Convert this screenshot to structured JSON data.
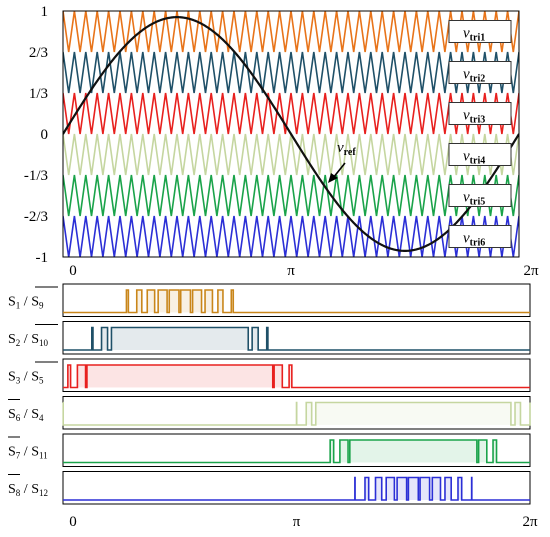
{
  "chart_data": [
    {
      "type": "line",
      "ylim": [
        -1,
        1
      ],
      "xlim": [
        0,
        6.2832
      ],
      "y_ticks": [
        "1",
        "2/3",
        "1/3",
        "0",
        "-1/3",
        "-2/3",
        "-1"
      ],
      "x_ticks": [
        "0",
        "π",
        "2π"
      ],
      "carrier_periods": 40,
      "series": [
        {
          "name": "v_tri1",
          "type": "triangle",
          "range": [
            0.6667,
            1.0
          ],
          "color": "#e8741a"
        },
        {
          "name": "v_tri2",
          "type": "triangle",
          "range": [
            0.3333,
            0.6667
          ],
          "color": "#1f5068"
        },
        {
          "name": "v_tri3",
          "type": "triangle",
          "range": [
            0.0,
            0.3333
          ],
          "color": "#e8201e"
        },
        {
          "name": "v_tri4",
          "type": "triangle",
          "range": [
            -0.3333,
            0.0
          ],
          "color": "#c5d6a0"
        },
        {
          "name": "v_tri5",
          "type": "triangle",
          "range": [
            -0.6667,
            -0.3333
          ],
          "color": "#1aa34a"
        },
        {
          "name": "v_tri6",
          "type": "triangle",
          "range": [
            -1.0,
            -0.6667
          ],
          "color": "#2b2fd6"
        },
        {
          "name": "v_ref",
          "type": "sine",
          "amplitude": 0.95,
          "color": "#111111"
        }
      ],
      "legend": {
        "labels": [
          {
            "main": "v",
            "sub": "tri1"
          },
          {
            "main": "v",
            "sub": "tri2"
          },
          {
            "main": "v",
            "sub": "tri3"
          },
          {
            "main": "v",
            "sub": "tri4"
          },
          {
            "main": "v",
            "sub": "tri5"
          },
          {
            "main": "v",
            "sub": "tri6"
          }
        ]
      },
      "annotation": {
        "main": "v",
        "sub": "ref"
      }
    },
    {
      "type": "line",
      "xlim": [
        0,
        6.2832
      ],
      "x_ticks": [
        "0",
        "π",
        "2π"
      ],
      "series": [
        {
          "label_a": "S",
          "sub_a": "1",
          "label_b": "S",
          "sub_b": "9",
          "bar_b": true,
          "bar_a": false,
          "color": "#c9861a",
          "level": 0.6667
        },
        {
          "label_a": "S",
          "sub_a": "2",
          "label_b": "S",
          "sub_b": "10",
          "bar_b": true,
          "bar_a": false,
          "color": "#1f5068",
          "level": 0.3333
        },
        {
          "label_a": "S",
          "sub_a": "3",
          "label_b": "S",
          "sub_b": "5",
          "bar_b": true,
          "bar_a": false,
          "color": "#e8201e",
          "level": 0.0
        },
        {
          "label_a": "S",
          "sub_a": "6",
          "label_b": "S",
          "sub_b": "4",
          "bar_b": false,
          "bar_a": true,
          "color": "#c5d6a0",
          "level": -0.3333
        },
        {
          "label_a": "S",
          "sub_a": "7",
          "label_b": "S",
          "sub_b": "11",
          "bar_b": false,
          "bar_a": true,
          "color": "#1aa34a",
          "level": -0.6667
        },
        {
          "label_a": "S",
          "sub_a": "8",
          "label_b": "S",
          "sub_b": "12",
          "bar_b": false,
          "bar_a": true,
          "color": "#2b2fd6",
          "level": -1.0
        }
      ]
    }
  ]
}
